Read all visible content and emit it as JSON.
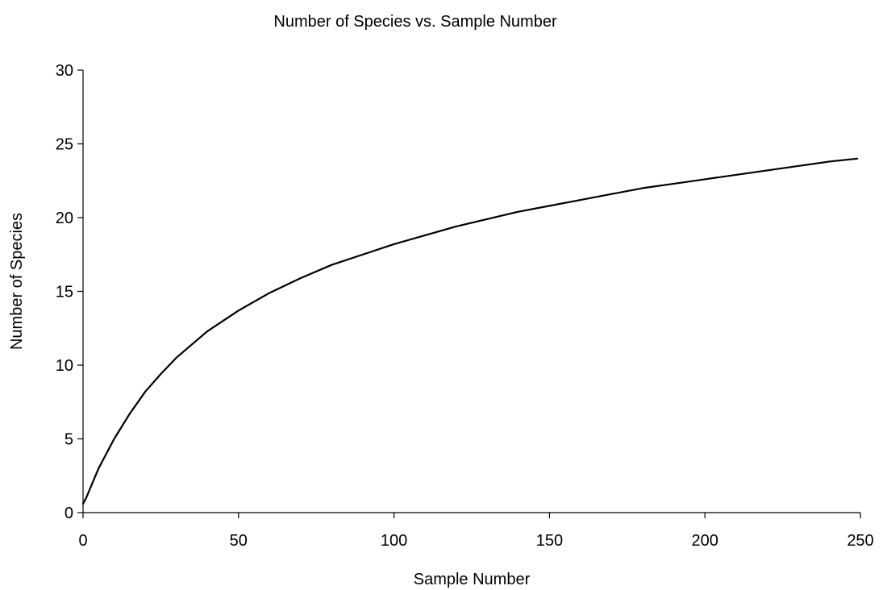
{
  "chart_data": {
    "type": "line",
    "title": "Number of Species vs. Sample Number",
    "xlabel": "Sample Number",
    "ylabel": "Number of Species",
    "xlim": [
      0,
      250
    ],
    "ylim": [
      0,
      30
    ],
    "x_ticks": [
      0,
      50,
      100,
      150,
      200,
      250
    ],
    "y_ticks": [
      0,
      5,
      10,
      15,
      20,
      25,
      30
    ],
    "x_tick_labels": [
      "0",
      "50",
      "100",
      "150",
      "200",
      "250"
    ],
    "y_tick_labels": [
      "0",
      "5",
      "10",
      "15",
      "20",
      "25",
      "30"
    ],
    "grid": false,
    "legend": "none",
    "line_color": "#000000",
    "series": [
      {
        "x": [
          0,
          1,
          2,
          5,
          10,
          15,
          20,
          25,
          30,
          40,
          50,
          60,
          70,
          80,
          90,
          100,
          110,
          120,
          130,
          140,
          150,
          160,
          170,
          180,
          190,
          200,
          210,
          220,
          230,
          240,
          249
        ],
        "values": [
          0.6,
          1.0,
          1.5,
          3.0,
          5.0,
          6.7,
          8.2,
          9.4,
          10.5,
          12.3,
          13.7,
          14.9,
          15.9,
          16.8,
          17.5,
          18.2,
          18.8,
          19.4,
          19.9,
          20.4,
          20.8,
          21.2,
          21.6,
          22.0,
          22.3,
          22.6,
          22.9,
          23.2,
          23.5,
          23.8,
          24.0
        ]
      }
    ]
  }
}
